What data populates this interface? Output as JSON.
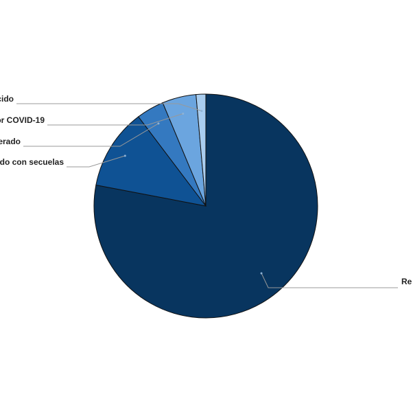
{
  "chart_data": {
    "type": "pie",
    "categories": [
      "Re",
      "do con secuelas",
      "erado",
      "or COVID-19",
      "cido"
    ],
    "values": [
      78,
      11.7,
      4,
      4.9,
      1.4
    ],
    "colors": [
      "#08355f",
      "#0f5294",
      "#3479c0",
      "#6ba5df",
      "#a9cdef"
    ]
  }
}
